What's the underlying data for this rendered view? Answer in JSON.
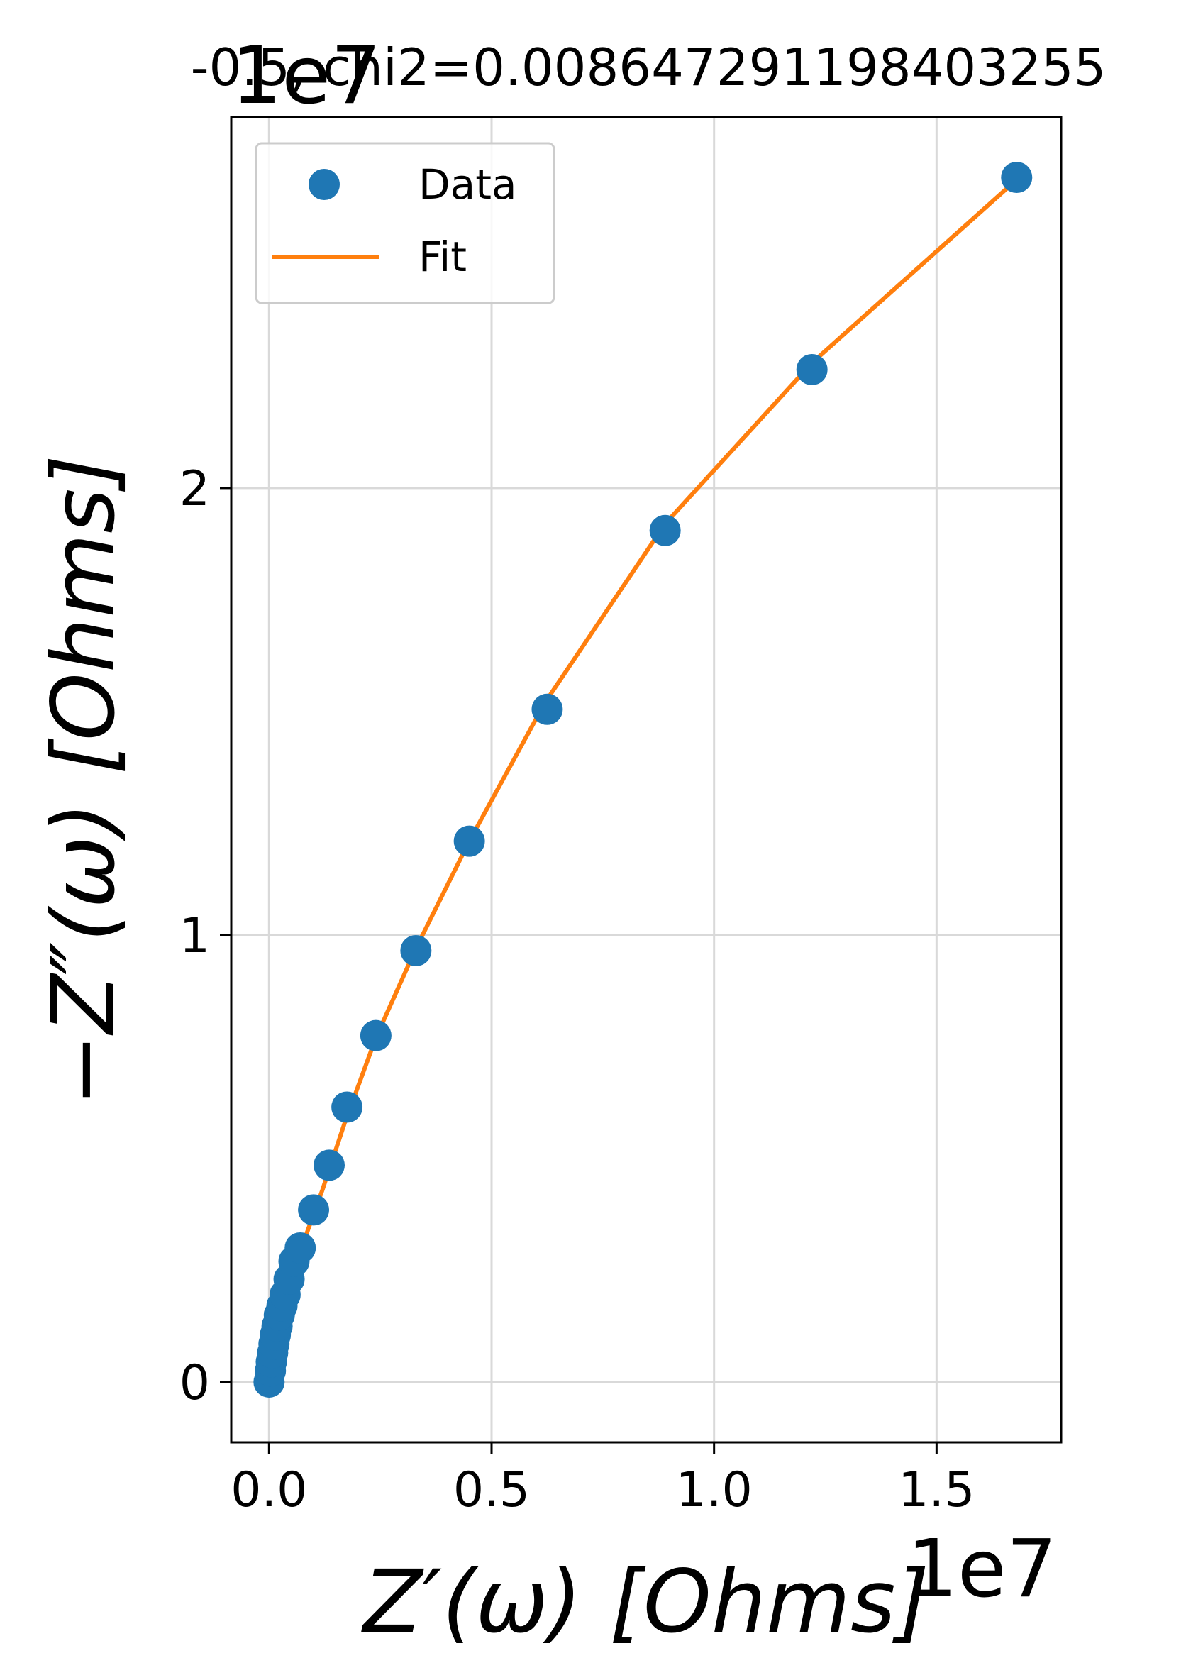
{
  "chart_data": {
    "type": "scatter",
    "title": "-0.5, chi2=0.008647291198403255",
    "xlabel": "Z′(ω) [Ohms]",
    "ylabel": "−Z″(ω) [Ohms]",
    "x_offset": "1e7",
    "y_offset": "1e7",
    "xlim": [
      -0.085,
      1.78
    ],
    "ylim": [
      -0.135,
      2.83
    ],
    "xticks": [
      0.0,
      0.5,
      1.0,
      1.5
    ],
    "xtick_labels": [
      "0.0",
      "0.5",
      "1.0",
      "1.5"
    ],
    "yticks": [
      0,
      1,
      2
    ],
    "ytick_labels": [
      "0",
      "1",
      "2"
    ],
    "grid": true,
    "legend": {
      "position": "upper-left",
      "entries": [
        "Data",
        "Fit"
      ]
    },
    "colors": {
      "data": "#1f77b4",
      "fit": "#ff7f0e"
    },
    "series": [
      {
        "name": "Data",
        "type": "scatter",
        "x": [
          0.0,
          0.003,
          0.005,
          0.008,
          0.011,
          0.014,
          0.018,
          0.023,
          0.029,
          0.036,
          0.045,
          0.056,
          0.07,
          0.1,
          0.135,
          0.175,
          0.24,
          0.33,
          0.45,
          0.625,
          0.89,
          1.22,
          1.68
        ],
        "y": [
          0.0,
          0.025,
          0.045,
          0.065,
          0.085,
          0.105,
          0.125,
          0.15,
          0.17,
          0.195,
          0.23,
          0.27,
          0.3,
          0.385,
          0.485,
          0.615,
          0.775,
          0.965,
          1.21,
          1.505,
          1.905,
          2.265,
          2.695
        ]
      },
      {
        "name": "Fit",
        "type": "line",
        "x": [
          0.0,
          0.006,
          0.015,
          0.03,
          0.05,
          0.08,
          0.12,
          0.17,
          0.24,
          0.33,
          0.45,
          0.62,
          0.89,
          1.22,
          1.68
        ],
        "y": [
          0.0,
          0.05,
          0.1,
          0.16,
          0.23,
          0.32,
          0.43,
          0.58,
          0.77,
          0.97,
          1.21,
          1.52,
          1.92,
          2.28,
          2.69
        ]
      }
    ]
  }
}
